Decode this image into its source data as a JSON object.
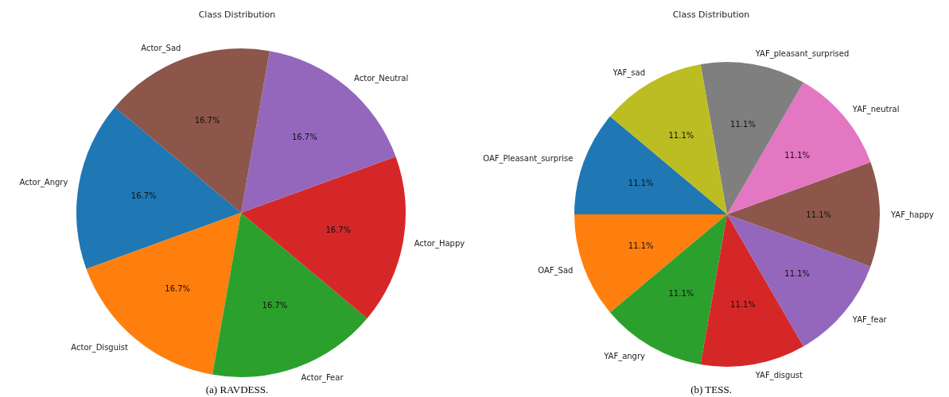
{
  "chart_data": [
    {
      "type": "pie",
      "title": "Class Distribution",
      "categories": [
        "Actor_Angry",
        "Actor_Disguist",
        "Actor_Fear",
        "Actor_Happy",
        "Actor_Neutral",
        "Actor_Sad"
      ],
      "values": [
        16.7,
        16.7,
        16.7,
        16.7,
        16.7,
        16.7
      ],
      "value_labels": [
        "16.7%",
        "16.7%",
        "16.7%",
        "16.7%",
        "16.7%",
        "16.7%"
      ],
      "colors": [
        "#1f77b4",
        "#ff7f0e",
        "#2ca02c",
        "#d62728",
        "#9467bd",
        "#8c564b"
      ],
      "annotations": [
        "(a) RAVDESS."
      ]
    },
    {
      "type": "pie",
      "title": "Class Distribution",
      "categories": [
        "OAF_Pleasant_surprise",
        "OAF_Sad",
        "YAF_angry",
        "YAF_disgust",
        "YAF_fear",
        "YAF_happy",
        "YAF_neutral",
        "YAF_pleasant_surprised",
        "YAF_sad"
      ],
      "values": [
        11.1,
        11.1,
        11.1,
        11.1,
        11.1,
        11.1,
        11.1,
        11.1,
        11.1
      ],
      "value_labels": [
        "11.1%",
        "11.1%",
        "11.1%",
        "11.1%",
        "11.1%",
        "11.1%",
        "11.1%",
        "11.1%",
        "11.1%"
      ],
      "colors": [
        "#1f77b4",
        "#ff7f0e",
        "#2ca02c",
        "#d62728",
        "#9467bd",
        "#8c564b",
        "#e377c2",
        "#7f7f7f",
        "#bcbd22"
      ],
      "annotations": [
        "(b) TESS."
      ]
    }
  ]
}
